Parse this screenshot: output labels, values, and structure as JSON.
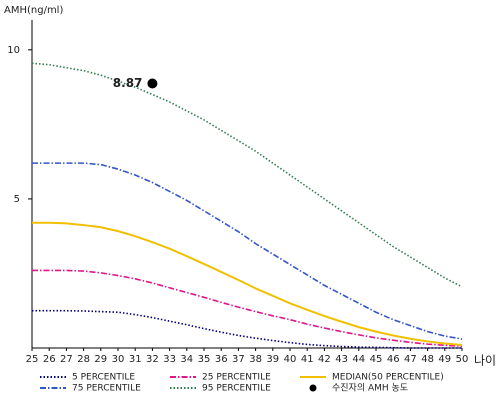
{
  "chart_data": {
    "type": "line",
    "y_label": "AMH(ng/ml)",
    "x_label": "나이",
    "x": [
      25,
      26,
      27,
      28,
      29,
      30,
      31,
      32,
      33,
      34,
      35,
      36,
      37,
      38,
      39,
      40,
      41,
      42,
      43,
      44,
      45,
      46,
      47,
      48,
      49,
      50
    ],
    "xlim": [
      25,
      50
    ],
    "xticks": [
      25,
      26,
      27,
      28,
      29,
      30,
      31,
      32,
      33,
      34,
      35,
      36,
      37,
      38,
      39,
      40,
      41,
      42,
      43,
      44,
      45,
      46,
      47,
      48,
      49,
      50
    ],
    "ylim": [
      0,
      11
    ],
    "yticks": [
      5,
      10
    ],
    "grid": false,
    "series": [
      {
        "name": "5 PERCENTILE",
        "color": "#000080",
        "dash": "dotted",
        "values": [
          1.25,
          1.25,
          1.25,
          1.24,
          1.22,
          1.2,
          1.12,
          1.02,
          0.9,
          0.78,
          0.65,
          0.53,
          0.42,
          0.33,
          0.25,
          0.18,
          0.12,
          0.08,
          0.05,
          0.03,
          0.02,
          0.01,
          0,
          0,
          0,
          0
        ]
      },
      {
        "name": "25 PERCENTILE",
        "color": "#e0158a",
        "dash": "dashdot",
        "values": [
          2.6,
          2.6,
          2.6,
          2.58,
          2.52,
          2.43,
          2.32,
          2.18,
          2.02,
          1.86,
          1.7,
          1.53,
          1.37,
          1.22,
          1.08,
          0.95,
          0.8,
          0.67,
          0.55,
          0.44,
          0.34,
          0.26,
          0.19,
          0.13,
          0.09,
          0.06
        ]
      },
      {
        "name": "MEDIAN(50 PERCENTILE)",
        "color": "#f0c000",
        "dash": "solid",
        "values": [
          4.2,
          4.2,
          4.18,
          4.12,
          4.05,
          3.92,
          3.75,
          3.55,
          3.33,
          3.08,
          2.82,
          2.55,
          2.28,
          2.0,
          1.75,
          1.5,
          1.28,
          1.07,
          0.88,
          0.7,
          0.55,
          0.42,
          0.31,
          0.22,
          0.15,
          0.1
        ]
      },
      {
        "name": "75 PERCENTILE",
        "color": "#3355cc",
        "dash": "dashdot",
        "values": [
          6.2,
          6.2,
          6.2,
          6.2,
          6.15,
          6.0,
          5.8,
          5.55,
          5.25,
          4.95,
          4.6,
          4.25,
          3.9,
          3.5,
          3.15,
          2.8,
          2.45,
          2.1,
          1.8,
          1.5,
          1.2,
          0.95,
          0.75,
          0.55,
          0.4,
          0.3
        ]
      },
      {
        "name": "95 PERCENTILE",
        "color": "#2e7d4f",
        "dash": "dotted",
        "values": [
          9.55,
          9.5,
          9.4,
          9.3,
          9.15,
          8.95,
          8.75,
          8.5,
          8.25,
          7.95,
          7.65,
          7.3,
          6.95,
          6.6,
          6.2,
          5.8,
          5.4,
          5.0,
          4.6,
          4.2,
          3.8,
          3.4,
          3.05,
          2.7,
          2.35,
          2.05
        ]
      }
    ],
    "point": {
      "name": "수진자의 AMH 농도",
      "color": "#000000",
      "x": [
        32
      ],
      "values": [
        8.87
      ]
    }
  }
}
